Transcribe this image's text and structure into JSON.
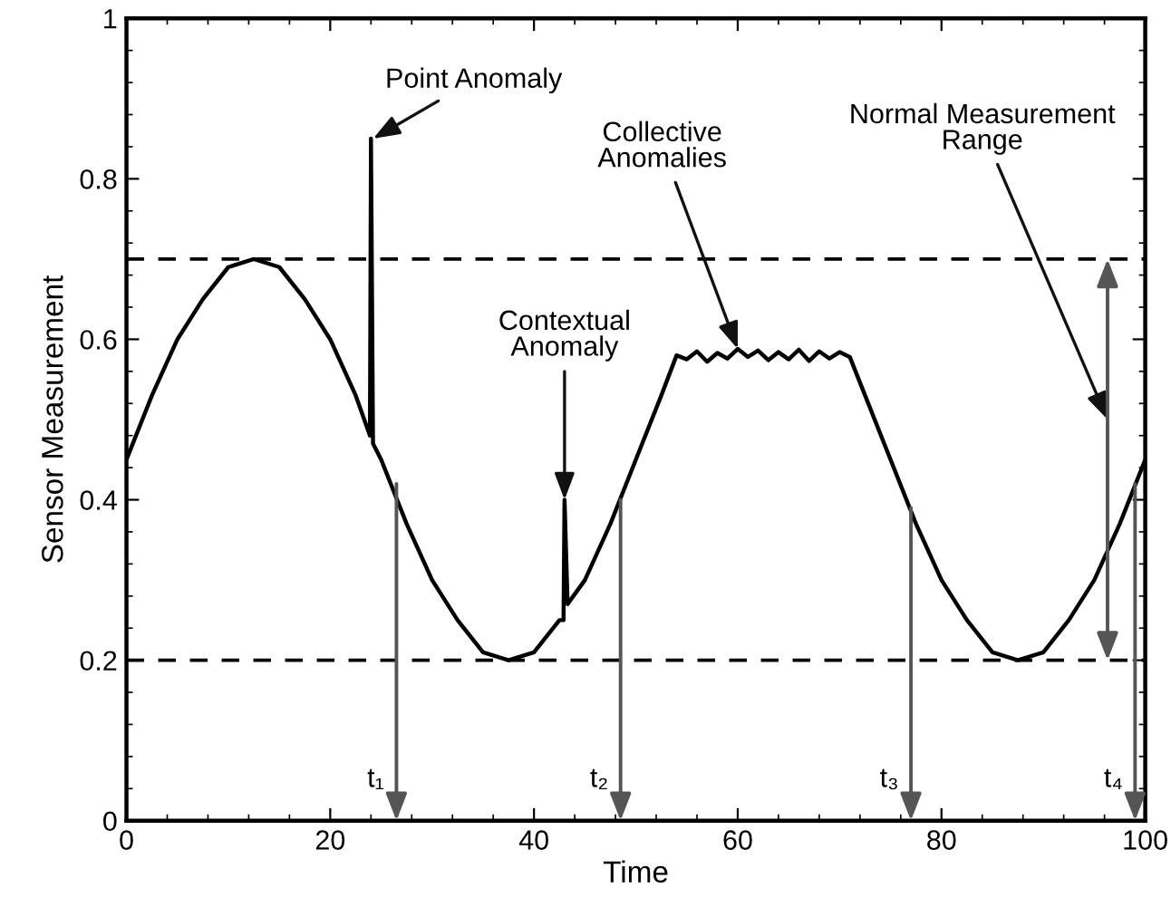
{
  "chart_data": {
    "type": "line",
    "xlabel": "Time",
    "ylabel": "Sensor Measurement",
    "xlim": [
      0,
      100
    ],
    "ylim": [
      0,
      1
    ],
    "xticks": [
      0,
      20,
      40,
      60,
      80,
      100
    ],
    "yticks": [
      0,
      0.2,
      0.4,
      0.6,
      0.8,
      1
    ],
    "series": [
      {
        "color": "#000000",
        "x": [
          0,
          2.5,
          5,
          7.5,
          10,
          12.5,
          15,
          17.5,
          20,
          22.5,
          23.9,
          24,
          24.2,
          25,
          27.5,
          30,
          32.5,
          35,
          37.5,
          40,
          42.5,
          42.9,
          43,
          43.3,
          45,
          47.5,
          50,
          52.5,
          54,
          55,
          56,
          57,
          58,
          59,
          60,
          61,
          62,
          63,
          64,
          65,
          66,
          67,
          68,
          69,
          70,
          71,
          72.5,
          75,
          77.5,
          80,
          82.5,
          85,
          87.5,
          90,
          92.5,
          95,
          97.5,
          100
        ],
        "values": [
          0.45,
          0.53,
          0.6,
          0.65,
          0.69,
          0.7,
          0.69,
          0.65,
          0.6,
          0.53,
          0.48,
          0.85,
          0.47,
          0.45,
          0.37,
          0.3,
          0.25,
          0.21,
          0.2,
          0.21,
          0.25,
          0.25,
          0.4,
          0.27,
          0.3,
          0.37,
          0.45,
          0.53,
          0.58,
          0.575,
          0.585,
          0.572,
          0.583,
          0.576,
          0.588,
          0.578,
          0.586,
          0.574,
          0.584,
          0.575,
          0.587,
          0.573,
          0.585,
          0.576,
          0.584,
          0.578,
          0.53,
          0.45,
          0.37,
          0.3,
          0.25,
          0.21,
          0.2,
          0.21,
          0.25,
          0.3,
          0.37,
          0.45
        ]
      }
    ],
    "ref_lines": [
      {
        "axis": "y",
        "value": 0.2,
        "line_style": "dashed",
        "color": "#000000"
      },
      {
        "axis": "y",
        "value": 0.7,
        "line_style": "dashed",
        "color": "#000000"
      }
    ],
    "annotations": [
      {
        "text": "Point Anomaly",
        "x": 24.2,
        "y": 0.85
      },
      {
        "text": "Contextual\nAnomaly",
        "x": 43,
        "y": 0.4
      },
      {
        "text": "Collective\nAnomalies",
        "x": 60,
        "y": 0.588
      },
      "Normal Measurement\nRange",
      {
        "text": "t₁",
        "x": 26.5,
        "y": 0.42
      },
      {
        "text": "t₂",
        "x": 48.5,
        "y": 0.4
      },
      {
        "text": "t₃",
        "x": 77,
        "y": 0.39
      },
      {
        "text": "t₄",
        "x": 99,
        "y": 0.42
      }
    ],
    "grid": false,
    "legend": false,
    "marker": "none",
    "line_style": "solid"
  }
}
